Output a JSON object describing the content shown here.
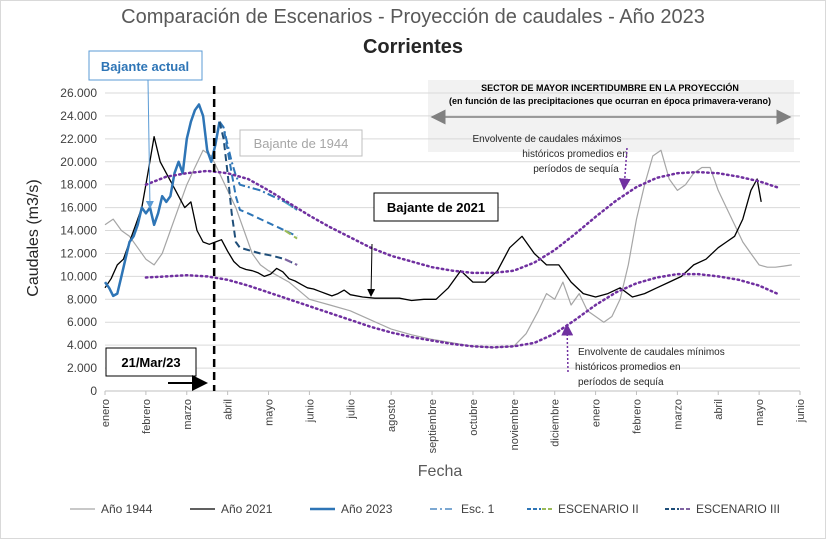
{
  "chart_data": {
    "type": "line",
    "title": "Comparación de Escenarios - Proyección de caudales - Año 2023",
    "subtitle": "Corrientes",
    "xlabel": "Fecha",
    "ylabel": "Caudales (m3/s)",
    "ylim": [
      0,
      26000
    ],
    "yticks": [
      "0",
      "2.000",
      "4.000",
      "6.000",
      "8.000",
      "10.000",
      "12.000",
      "14.000",
      "16.000",
      "18.000",
      "20.000",
      "22.000",
      "24.000",
      "26.000"
    ],
    "xlim": [
      0,
      17
    ],
    "xticks": [
      "enero",
      "febrero",
      "marzo",
      "abril",
      "mayo",
      "junio",
      "julio",
      "agosto",
      "septiembre",
      "octubre",
      "noviembre",
      "diciembre",
      "enero",
      "febrero",
      "marzo",
      "abril",
      "mayo",
      "junio"
    ],
    "grid": true,
    "legend_position": "bottom",
    "series": [
      {
        "name": "Año 1944",
        "color": "#a6a6a6",
        "style": "solid",
        "x": [
          0,
          0.2,
          0.4,
          0.6,
          0.8,
          1.0,
          1.2,
          1.4,
          1.6,
          1.8,
          2.0,
          2.2,
          2.4,
          2.6,
          2.8,
          3.0,
          3.2,
          3.4,
          3.6,
          3.8,
          4.0,
          4.5,
          5.0,
          5.5,
          6.0,
          6.5,
          7.0,
          7.5,
          8.0,
          8.5,
          9.0,
          9.5,
          10.0,
          10.3,
          10.6,
          10.8,
          11.0,
          11.2,
          11.4,
          11.6,
          11.8,
          12.0,
          12.2,
          12.4,
          12.6,
          12.8,
          13.0,
          13.2,
          13.4,
          13.6,
          13.8,
          14.0,
          14.2,
          14.4,
          14.6,
          14.8,
          15.0,
          15.2,
          15.4,
          15.6,
          15.8,
          16.0,
          16.2,
          16.4,
          16.6,
          16.8
        ],
        "y": [
          14500,
          15000,
          14000,
          13500,
          12500,
          11500,
          11000,
          12000,
          14000,
          16000,
          18000,
          19500,
          21000,
          20500,
          19000,
          17500,
          16000,
          14000,
          12000,
          11000,
          10500,
          9500,
          8000,
          7500,
          7000,
          6200,
          5400,
          4900,
          4500,
          4200,
          3900,
          3800,
          3900,
          5000,
          7000,
          8500,
          8000,
          9500,
          7500,
          8500,
          7000,
          6500,
          6000,
          6500,
          8000,
          11000,
          15000,
          18000,
          20500,
          21000,
          18500,
          17500,
          18000,
          19000,
          19500,
          19500,
          17500,
          16000,
          14500,
          13000,
          12000,
          11000,
          10800,
          10800,
          10900,
          11000
        ]
      },
      {
        "name": "Año 2021",
        "color": "#000000",
        "style": "solid",
        "x": [
          0,
          0.15,
          0.3,
          0.45,
          0.6,
          0.75,
          0.9,
          1.05,
          1.2,
          1.35,
          1.5,
          1.65,
          1.8,
          1.95,
          2.1,
          2.25,
          2.4,
          2.55,
          2.7,
          2.85,
          3.0,
          3.15,
          3.3,
          3.45,
          3.6,
          3.75,
          3.9,
          4.05,
          4.2,
          4.35,
          4.5,
          4.65,
          4.8,
          4.95,
          5.1,
          5.25,
          5.4,
          5.55,
          5.7,
          5.85,
          6.0,
          6.3,
          6.6,
          6.9,
          7.2,
          7.5,
          7.8,
          8.1,
          8.4,
          8.7,
          9.0,
          9.3,
          9.6,
          9.9,
          10.2,
          10.5,
          10.8,
          11.1,
          11.4,
          11.7,
          12.0,
          12.3,
          12.6,
          12.9,
          13.2,
          13.5,
          13.8,
          14.1,
          14.4,
          14.7,
          15.0,
          15.2,
          15.4,
          15.6,
          15.8,
          15.95,
          16.05
        ],
        "y": [
          9000,
          9800,
          11000,
          11500,
          13000,
          14500,
          16000,
          19000,
          22200,
          20000,
          19000,
          18000,
          17000,
          16000,
          16500,
          14000,
          13000,
          12800,
          13000,
          13200,
          12200,
          11300,
          10800,
          10600,
          10500,
          10300,
          10000,
          10200,
          10700,
          10400,
          9800,
          9600,
          9300,
          9000,
          8900,
          8700,
          8500,
          8300,
          8500,
          8800,
          8400,
          8200,
          8100,
          8100,
          8100,
          7900,
          8000,
          8000,
          9000,
          10500,
          9500,
          9500,
          10500,
          12500,
          13500,
          12000,
          11000,
          11000,
          9500,
          8500,
          8200,
          8500,
          9000,
          8200,
          8500,
          9000,
          9500,
          10000,
          11000,
          11500,
          12500,
          13000,
          13500,
          15000,
          17500,
          18500,
          16500
        ]
      },
      {
        "name": "Año 2023",
        "color": "#2e75b6",
        "style": "solid",
        "x": [
          0,
          0.1,
          0.2,
          0.3,
          0.4,
          0.5,
          0.6,
          0.7,
          0.8,
          0.9,
          1.0,
          1.1,
          1.2,
          1.3,
          1.4,
          1.5,
          1.6,
          1.7,
          1.8,
          1.9,
          2.0,
          2.1,
          2.2,
          2.3,
          2.4,
          2.5,
          2.6,
          2.7,
          2.8
        ],
        "y": [
          9500,
          9000,
          8300,
          8500,
          10000,
          11500,
          13000,
          13500,
          14500,
          16000,
          15500,
          16000,
          14500,
          15500,
          17000,
          16500,
          17000,
          19000,
          20000,
          19000,
          22000,
          23500,
          24500,
          25000,
          24000,
          21000,
          20000,
          21500,
          23500
        ]
      },
      {
        "name": "Esc. 1",
        "color": "#2e75b6",
        "style": "dashdot",
        "x": [
          2.8,
          2.9,
          3.0,
          3.1,
          3.2,
          3.3,
          3.5,
          3.8,
          4.1,
          4.4,
          4.7
        ],
        "y": [
          23500,
          23000,
          21500,
          20000,
          18800,
          18000,
          17800,
          17500,
          17000,
          16500,
          15800
        ]
      },
      {
        "name": "Esc. 1 (cont.)",
        "color": "#4bacc6",
        "style": "dashdot",
        "x": [
          4.4,
          4.7
        ],
        "y": [
          16500,
          15800
        ]
      },
      {
        "name": "ESCENARIO II",
        "color": "#2e75b6",
        "style": "dashed",
        "x": [
          2.8,
          2.9,
          3.0,
          3.1,
          3.2,
          3.3,
          3.5,
          3.8,
          4.1,
          4.4,
          4.7
        ],
        "y": [
          23500,
          23000,
          21000,
          19000,
          17000,
          15800,
          15500,
          15000,
          14500,
          14000,
          13500
        ]
      },
      {
        "name": "ESCENARIO II (cont.)",
        "color": "#9bbb59",
        "style": "dashed",
        "x": [
          4.4,
          4.7
        ],
        "y": [
          14000,
          13300
        ]
      },
      {
        "name": "ESCENARIO III",
        "color": "#1f4e79",
        "style": "dashed",
        "x": [
          2.8,
          2.9,
          3.0,
          3.1,
          3.2,
          3.3,
          3.5,
          3.8,
          4.1,
          4.4,
          4.7
        ],
        "y": [
          23500,
          22000,
          19000,
          15500,
          13000,
          12500,
          12300,
          12000,
          11800,
          11500,
          11000
        ]
      },
      {
        "name": "ESCENARIO III (cont.)",
        "color": "#8064a2",
        "style": "dashed",
        "x": [
          4.4,
          4.7
        ],
        "y": [
          11500,
          11000
        ]
      },
      {
        "name": "Envolvente máx",
        "color": "#7030a0",
        "style": "dotted",
        "x": [
          1,
          1.5,
          2,
          2.5,
          3,
          3.5,
          4,
          4.5,
          5,
          5.5,
          6,
          6.5,
          7,
          7.5,
          8,
          8.5,
          9,
          9.5,
          10,
          10.5,
          11,
          11.5,
          12,
          12.5,
          13,
          13.5,
          14,
          14.5,
          15,
          15.5,
          16,
          16.5
        ],
        "y": [
          18000,
          18700,
          19000,
          19200,
          19000,
          18500,
          17500,
          16400,
          15300,
          14300,
          13400,
          12500,
          11800,
          11300,
          10800,
          10500,
          10300,
          10300,
          10500,
          11200,
          12300,
          13700,
          15200,
          16600,
          17800,
          18600,
          19000,
          19100,
          19000,
          18700,
          18300,
          17700
        ]
      },
      {
        "name": "Envolvente mín",
        "color": "#7030a0",
        "style": "dotted",
        "x": [
          1,
          1.5,
          2,
          2.5,
          3,
          3.5,
          4,
          4.5,
          5,
          5.5,
          6,
          6.5,
          7,
          7.5,
          8,
          8.5,
          9,
          9.5,
          10,
          10.5,
          11,
          11.5,
          12,
          12.5,
          13,
          13.5,
          14,
          14.5,
          15,
          15.5,
          16,
          16.5
        ],
        "y": [
          9900,
          10000,
          10100,
          10000,
          9700,
          9200,
          8600,
          8000,
          7400,
          6800,
          6200,
          5600,
          5100,
          4700,
          4400,
          4100,
          3900,
          3800,
          3900,
          4200,
          5000,
          6200,
          7500,
          8600,
          9400,
          9900,
          10200,
          10200,
          10000,
          9700,
          9200,
          8400
        ]
      }
    ],
    "legend": [
      {
        "label": "Año 1944",
        "color": "#a6a6a6",
        "style": "solid"
      },
      {
        "label": "Año 2021",
        "color": "#000000",
        "style": "solid"
      },
      {
        "label": "Año 2023",
        "color": "#2e75b6",
        "style": "solid-thick"
      },
      {
        "label": "Esc. 1",
        "color": "#2e75b6",
        "style": "dashdot"
      },
      {
        "label": "ESCENARIO II",
        "color": "#2e75b6",
        "style": "dashed-multi"
      },
      {
        "label": "ESCENARIO III",
        "color": "#1f4e79",
        "style": "dashed-multi"
      }
    ],
    "annotations": {
      "bajante_actual": "Bajante actual",
      "bajante_1944": "Bajante de 1944",
      "bajante_2021": "Bajante de 2021",
      "fecha_corte": "21/Mar/23",
      "fecha_corte_x": 2.67,
      "sector_title": "SECTOR DE MAYOR INCERTIDUMBRE EN LA PROYECCIÓN",
      "sector_sub": "(en función de las precipitaciones que ocurran  en época primavera-verano)",
      "env_max": [
        "Envolvente de caudales máximos",
        "históricos promedios en",
        "períodos de sequía"
      ],
      "env_min": [
        "Envolvente de caudales mínimos",
        "históricos promedios en",
        "períodos de sequía"
      ]
    }
  }
}
